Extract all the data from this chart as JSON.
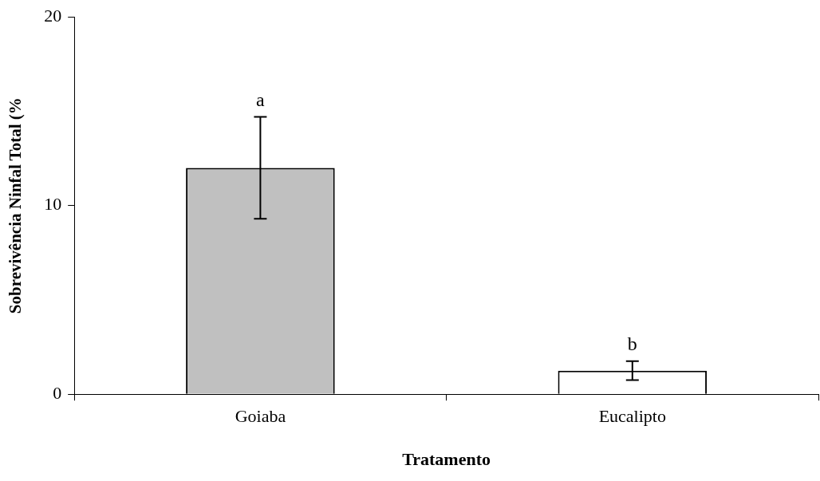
{
  "chart_data": {
    "type": "bar",
    "xlabel": "Tratamento",
    "ylabel": "Sobrevivência Ninfal Total (%",
    "categories": [
      "Goiaba",
      "Eucalipto"
    ],
    "values": [
      12.0,
      1.25
    ],
    "colors": [
      "#c0c0c0",
      "#ffffff"
    ],
    "errors": [
      2.7,
      0.5
    ],
    "ylim": [
      0,
      20
    ],
    "yticks": [
      0,
      10,
      20
    ],
    "grid": false,
    "legend": false,
    "annotations": [
      {
        "text": "a",
        "x": "Goiaba",
        "y": 14.7
      },
      {
        "text": "b",
        "x": "Eucalipto",
        "y": 1.75
      }
    ]
  }
}
